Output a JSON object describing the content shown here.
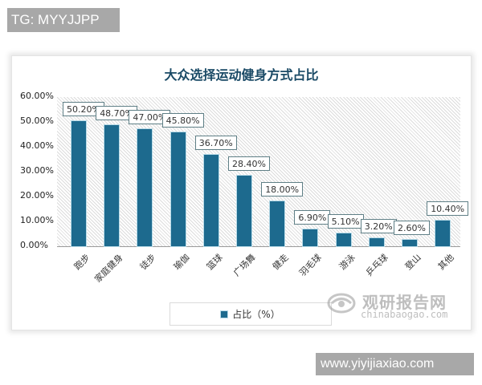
{
  "watermarks": {
    "top_tag": "TG: MYYJJPP",
    "bottom_tag": "www.yiyijiaxiao.com",
    "brand_cn": "观研报告网",
    "brand_en": "chinabaogao.com"
  },
  "chart": {
    "title": "大众选择运动健身方式占比",
    "legend_label": "占比（%）",
    "y_ticks": [
      "60.00%",
      "50.00%",
      "40.00%",
      "30.00%",
      "20.00%",
      "10.00%",
      "0.00%"
    ],
    "bar_color": "#1d6a8e",
    "title_color": "#1a4a66"
  },
  "chart_data": {
    "type": "bar",
    "title": "大众选择运动健身方式占比",
    "xlabel": "",
    "ylabel": "",
    "ylim": [
      0,
      60
    ],
    "y_tick_format": "percent_2dp",
    "grid": false,
    "legend_position": "bottom",
    "categories": [
      "跑步",
      "家庭健身",
      "徒步",
      "瑜伽",
      "篮球",
      "广场舞",
      "健走",
      "羽毛球",
      "游泳",
      "乒乓球",
      "登山",
      "其他"
    ],
    "series": [
      {
        "name": "占比（%）",
        "values": [
          50.2,
          48.7,
          47.0,
          45.8,
          36.7,
          28.4,
          18.0,
          6.9,
          5.1,
          3.2,
          2.6,
          10.4
        ],
        "labels": [
          "50.20%",
          "48.70%",
          "47.00%",
          "45.80%",
          "36.70%",
          "28.40%",
          "18.00%",
          "6.90%",
          "5.10%",
          "3.20%",
          "2.60%",
          "10.40%"
        ]
      }
    ]
  }
}
